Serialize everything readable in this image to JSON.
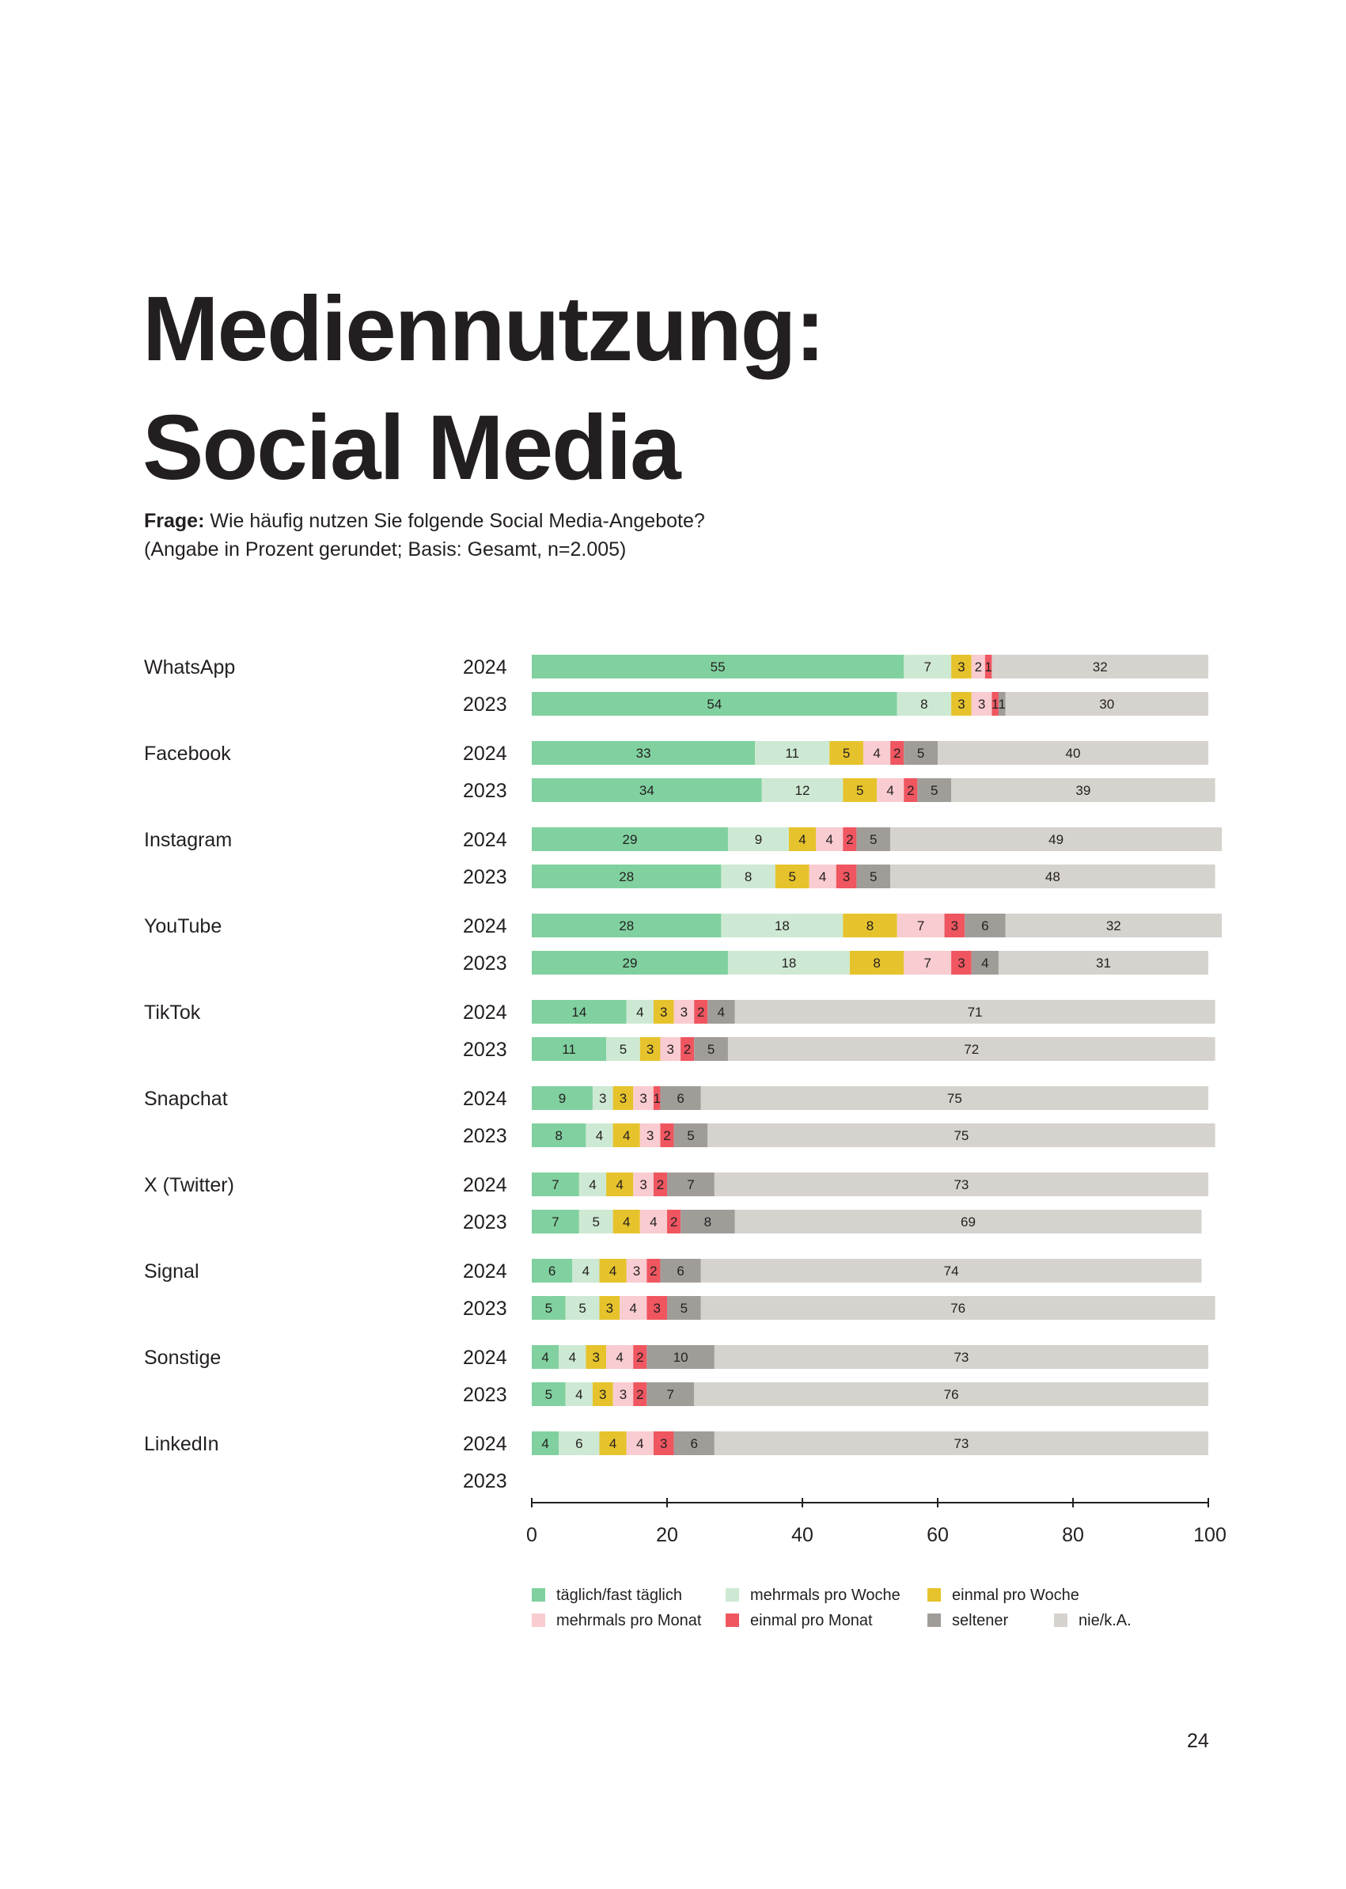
{
  "title_lines": [
    "Mediennutzung:",
    "Social Media"
  ],
  "question": {
    "label": "Frage:",
    "text": " Wie häufig nutzen Sie folgende Social Media-Angebote?",
    "note": "(Angabe in Prozent gerundet; Basis: Gesamt, n=2.005)"
  },
  "page_number": "24",
  "colors": {
    "daily": "#80d19f",
    "several_week": "#cde9d3",
    "once_week": "#e6c32c",
    "several_month": "#f8ccd0",
    "once_month": "#ef5660",
    "rarely": "#a09d99",
    "never": "#d6d2cd"
  },
  "chart_data": {
    "type": "bar",
    "orientation": "horizontal",
    "stacked": true,
    "unit": "percent",
    "xlim": [
      0,
      100
    ],
    "xticks": [
      "0",
      "20",
      "40",
      "60",
      "80",
      "100"
    ],
    "legend_position": "bottom",
    "series": [
      {
        "key": "daily",
        "name": "täglich/fast täglich"
      },
      {
        "key": "several_week",
        "name": "mehrmals pro Woche"
      },
      {
        "key": "once_week",
        "name": "einmal pro Woche"
      },
      {
        "key": "several_month",
        "name": "mehrmals pro Monat"
      },
      {
        "key": "once_month",
        "name": "einmal pro Monat"
      },
      {
        "key": "rarely",
        "name": "seltener"
      },
      {
        "key": "never",
        "name": "nie/k.A."
      }
    ],
    "legend_order": [
      "daily",
      "several_week",
      "once_week",
      "several_month",
      "once_month",
      "rarely",
      "never"
    ],
    "groups": [
      {
        "platform": "WhatsApp",
        "rows": [
          {
            "year": "2024",
            "values": [
              55,
              7,
              3,
              2,
              1,
              0,
              32
            ]
          },
          {
            "year": "2023",
            "values": [
              54,
              8,
              3,
              3,
              1,
              1,
              30
            ]
          }
        ]
      },
      {
        "platform": "Facebook",
        "rows": [
          {
            "year": "2024",
            "values": [
              33,
              11,
              5,
              4,
              2,
              5,
              40
            ]
          },
          {
            "year": "2023",
            "values": [
              34,
              12,
              5,
              4,
              2,
              5,
              39
            ]
          }
        ]
      },
      {
        "platform": "Instagram",
        "rows": [
          {
            "year": "2024",
            "values": [
              29,
              9,
              4,
              4,
              2,
              5,
              49
            ]
          },
          {
            "year": "2023",
            "values": [
              28,
              8,
              5,
              4,
              3,
              5,
              48
            ]
          }
        ]
      },
      {
        "platform": "YouTube",
        "rows": [
          {
            "year": "2024",
            "values": [
              28,
              18,
              8,
              7,
              3,
              6,
              32
            ]
          },
          {
            "year": "2023",
            "values": [
              29,
              18,
              8,
              7,
              3,
              4,
              31
            ]
          }
        ]
      },
      {
        "platform": "TikTok",
        "rows": [
          {
            "year": "2024",
            "values": [
              14,
              4,
              3,
              3,
              2,
              4,
              71
            ]
          },
          {
            "year": "2023",
            "values": [
              11,
              5,
              3,
              3,
              2,
              5,
              72
            ]
          }
        ]
      },
      {
        "platform": "Snapchat",
        "rows": [
          {
            "year": "2024",
            "values": [
              9,
              3,
              3,
              3,
              1,
              6,
              75
            ]
          },
          {
            "year": "2023",
            "values": [
              8,
              4,
              4,
              3,
              2,
              5,
              75
            ]
          }
        ]
      },
      {
        "platform": "X (Twitter)",
        "rows": [
          {
            "year": "2024",
            "values": [
              7,
              4,
              4,
              3,
              2,
              7,
              73
            ]
          },
          {
            "year": "2023",
            "values": [
              7,
              5,
              4,
              4,
              2,
              8,
              69
            ]
          }
        ]
      },
      {
        "platform": "Signal",
        "rows": [
          {
            "year": "2024",
            "values": [
              6,
              4,
              4,
              3,
              2,
              6,
              74
            ]
          },
          {
            "year": "2023",
            "values": [
              5,
              5,
              3,
              4,
              3,
              5,
              76
            ]
          }
        ]
      },
      {
        "platform": "Sonstige",
        "rows": [
          {
            "year": "2024",
            "values": [
              4,
              4,
              3,
              4,
              2,
              10,
              73
            ]
          },
          {
            "year": "2023",
            "values": [
              5,
              4,
              3,
              3,
              2,
              7,
              76
            ]
          }
        ]
      },
      {
        "platform": "LinkedIn",
        "rows": [
          {
            "year": "2024",
            "values": [
              4,
              6,
              4,
              4,
              3,
              6,
              73
            ]
          },
          {
            "year": "2023",
            "values": null
          }
        ]
      }
    ]
  }
}
